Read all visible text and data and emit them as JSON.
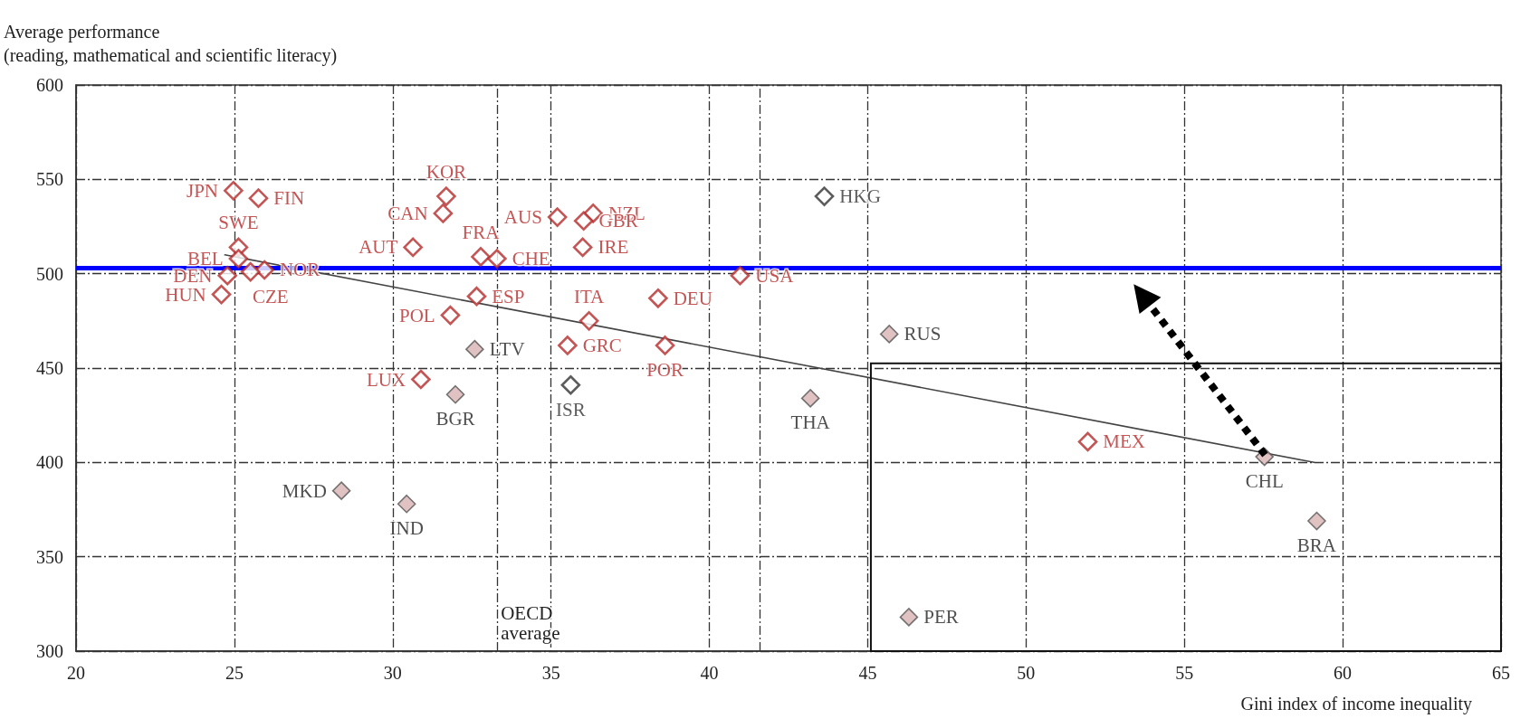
{
  "chart_data": {
    "type": "scatter",
    "ylabel": "Average performance\n(reading, mathematical and scientific literacy)",
    "xlabel": "Gini index of income inequality",
    "series": [
      {
        "color": "#b52a2a",
        "x": [
          24.97,
          25.76,
          25.13,
          25.13,
          25.95,
          25.51,
          24.78,
          24.59,
          31.69,
          31.59,
          30.64,
          32.78,
          33.29,
          32.65,
          31.82,
          30.89,
          35.2,
          36.2,
          35.52,
          36.33,
          36.03,
          36.0,
          40.97,
          38.38,
          38.6,
          51.95
        ],
        "values": [
          544,
          540,
          514,
          508,
          502,
          501,
          499,
          489,
          541,
          532,
          514,
          509,
          508,
          488,
          478,
          444,
          530,
          475,
          462,
          532,
          528,
          514,
          499,
          487,
          462,
          411
        ],
        "value_labels": [
          "JPN",
          "FIN",
          "SWE",
          "BEL",
          "NOR",
          "CZE",
          "DEN",
          "HUN",
          "KOR",
          "CAN",
          "AUT",
          "FRA",
          "CHE",
          "ESP",
          "POL",
          "LUX",
          "AUS",
          "ITA",
          "GRC",
          "NZL",
          "GBR",
          "IRE",
          "USA",
          "DEU",
          "POR",
          "MEX"
        ]
      },
      {
        "color": "#d9b3b3",
        "x": [
          32.59,
          31.98,
          28.38,
          30.44,
          43.19,
          45.68,
          57.53,
          59.18,
          46.3
        ],
        "values": [
          460,
          436,
          385,
          378,
          434,
          468,
          403,
          369,
          318
        ],
        "value_labels": [
          "LTV",
          "BGR",
          "MKD",
          "IND",
          "THA",
          "RUS",
          "CHL",
          "BRA",
          "PER"
        ]
      },
      {
        "color": "#333333",
        "x": [
          43.63,
          35.62
        ],
        "values": [
          541,
          441
        ],
        "value_labels": [
          "HKG",
          "ISR"
        ]
      },
      {
        "type": "line",
        "marker": "none",
        "color": "#444444",
        "x": [
          24.7,
          59.1
        ],
        "values": [
          510,
          400
        ]
      }
    ],
    "marker": "diamond",
    "xlim": [
      20,
      65
    ],
    "xticks": [
      20,
      25,
      30,
      35,
      40,
      45,
      50,
      55,
      60,
      65
    ],
    "ylim": [
      300,
      600
    ],
    "yticks": [
      300,
      350,
      400,
      450,
      500,
      550,
      600
    ],
    "grid": true,
    "ref_lines": [
      {
        "axis": "y",
        "value": 503,
        "label": null,
        "color": "#0000ff"
      },
      {
        "axis": "x",
        "value": 33.3,
        "label": "OECD\naverage",
        "color": "#333333",
        "line_style": "dashed"
      },
      {
        "axis": "x",
        "value": 41.6,
        "label": null,
        "color": "#333333",
        "line_style": "dashed"
      }
    ]
  }
}
